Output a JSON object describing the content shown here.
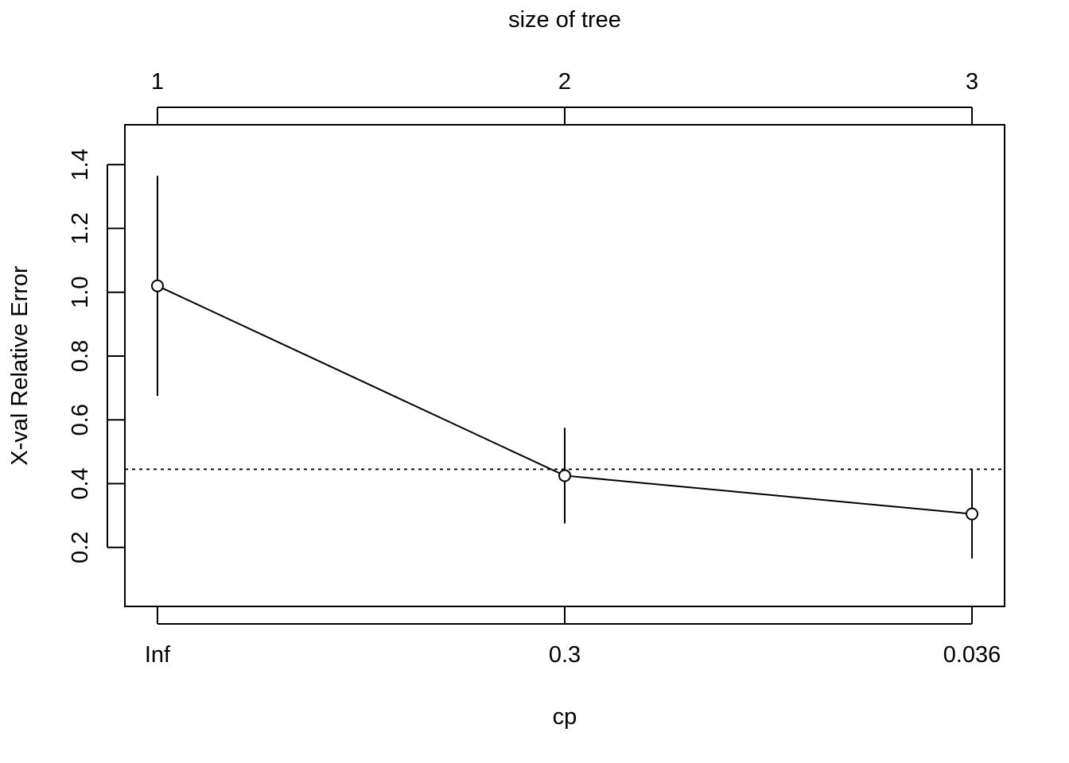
{
  "chart_data": {
    "type": "line",
    "title": "",
    "top_axis_label": "size of tree",
    "top_tick_labels": [
      "1",
      "2",
      "3"
    ],
    "xlabel": "cp",
    "x_tick_labels": [
      "Inf",
      "0.3",
      "0.036"
    ],
    "ylabel": "X-val Relative Error",
    "y_ticks": [
      0.2,
      0.4,
      0.6,
      0.8,
      1.0,
      1.2,
      1.4
    ],
    "y_tick_labels": [
      "0.2",
      "0.4",
      "0.6",
      "0.8",
      "1.0",
      "1.2",
      "1.4"
    ],
    "ylim": [
      0.015,
      1.525
    ],
    "x_positions": [
      1,
      2,
      3
    ],
    "xlim": [
      0.92,
      3.08
    ],
    "series": [
      {
        "values": [
          1.02,
          0.425,
          0.305
        ],
        "err_low": [
          0.675,
          0.275,
          0.165
        ],
        "err_high": [
          1.365,
          0.575,
          0.445
        ]
      }
    ],
    "reference_line": 0.445,
    "grid": false,
    "legend": "none"
  }
}
